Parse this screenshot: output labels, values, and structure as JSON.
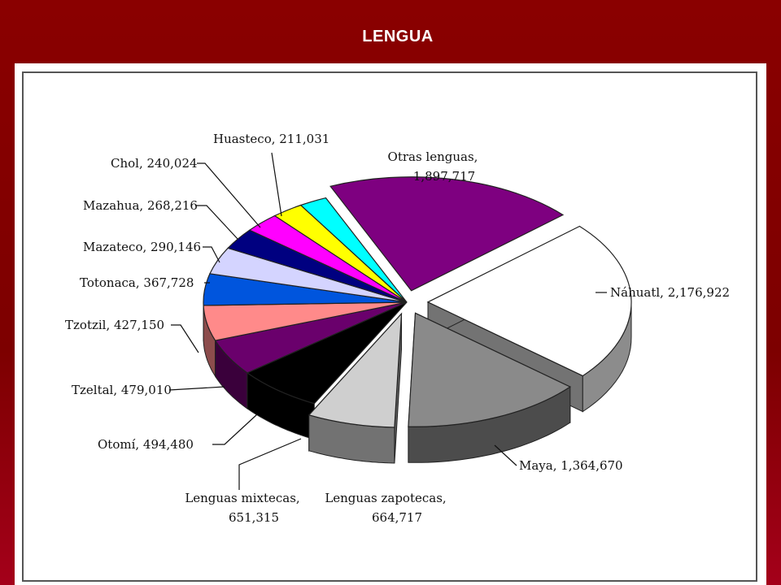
{
  "slide": {
    "title": "LENGUA"
  },
  "chart_data": {
    "type": "pie",
    "title": "",
    "slices": [
      {
        "name": "Otras lenguas",
        "label_lines": [
          "Otras lenguas,",
          "1,897,717"
        ],
        "value": 1897717,
        "color": "#7e0080",
        "exploded": true
      },
      {
        "name": "Náhuatl",
        "label_lines": [
          "Náhuatl, 2,176,922"
        ],
        "value": 2176922,
        "color": "#ffffff",
        "exploded": true
      },
      {
        "name": "Maya",
        "label_lines": [
          "Maya, 1,364,670"
        ],
        "value": 1364670,
        "color": "#8a8a8a",
        "exploded": true
      },
      {
        "name": "Lenguas zapotecas",
        "label_lines": [
          "Lenguas zapotecas,",
          "664,717"
        ],
        "value": 664717,
        "color": "#cfcfcf",
        "exploded": true
      },
      {
        "name": "Lenguas mixtecas",
        "label_lines": [
          "Lenguas mixtecas,",
          "651,315"
        ],
        "value": 651315,
        "color": "#000000",
        "exploded": false
      },
      {
        "name": "Otomí",
        "label_lines": [
          "Otomí, 494,480"
        ],
        "value": 494480,
        "color": "#6a006c",
        "exploded": false
      },
      {
        "name": "Tzeltal",
        "label_lines": [
          "Tzeltal, 479,010"
        ],
        "value": 479010,
        "color": "#ff8a8a",
        "exploded": false
      },
      {
        "name": "Tzotzil",
        "label_lines": [
          "Tzotzil, 427,150"
        ],
        "value": 427150,
        "color": "#0055dd",
        "exploded": false
      },
      {
        "name": "Totonaca",
        "label_lines": [
          "Totonaca, 367,728"
        ],
        "value": 367728,
        "color": "#d4d4ff",
        "exploded": false
      },
      {
        "name": "Mazateco",
        "label_lines": [
          "Mazateco, 290,146"
        ],
        "value": 290146,
        "color": "#000080",
        "exploded": false
      },
      {
        "name": "Mazahua",
        "label_lines": [
          "Mazahua, 268,216"
        ],
        "value": 268216,
        "color": "#ff00ff",
        "exploded": false
      },
      {
        "name": "Chol",
        "label_lines": [
          "Chol, 240,024"
        ],
        "value": 240024,
        "color": "#ffff00",
        "exploded": false
      },
      {
        "name": "Huasteco",
        "label_lines": [
          "Huasteco, 211,031"
        ],
        "value": 211031,
        "color": "#00ffff",
        "exploded": false
      }
    ]
  }
}
